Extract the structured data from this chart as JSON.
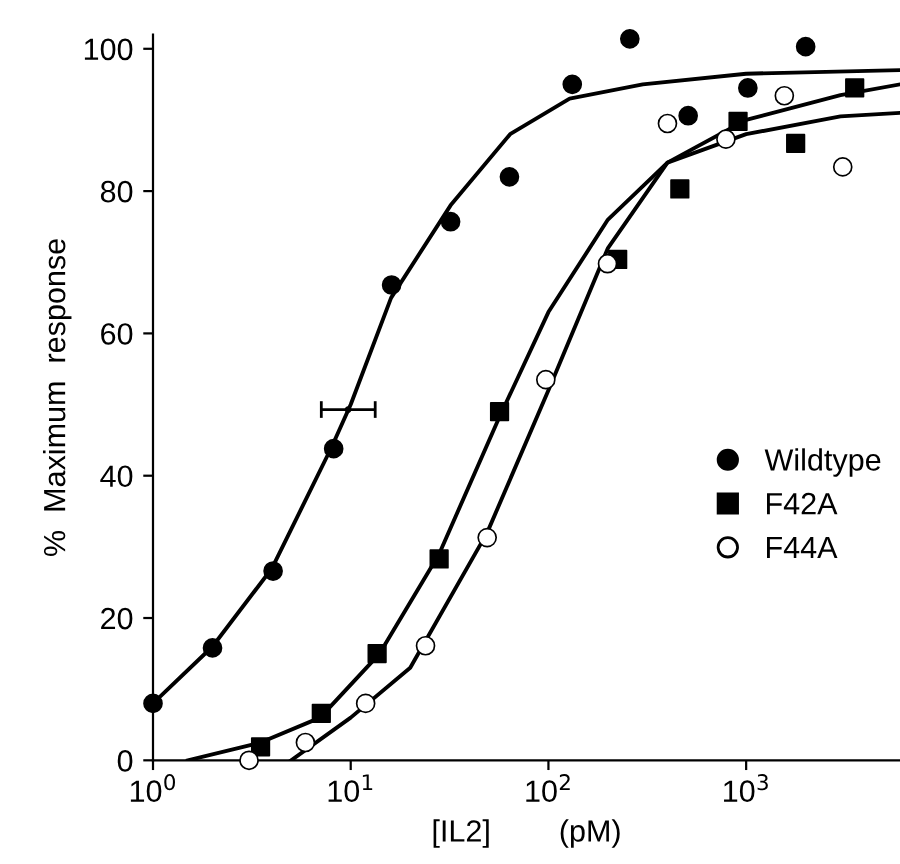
{
  "chart_data": {
    "type": "scatter",
    "xlabel": "[IL2]        (pM)",
    "ylabel": "%  Maximum  response",
    "log": "x",
    "xlim": [
      1,
      6000
    ],
    "xticks": [
      {
        "value": 1,
        "label": "10$^{0}$"
      },
      {
        "value": 10,
        "label": "10$^{1}$"
      },
      {
        "value": 100,
        "label": "10$^{2}$"
      },
      {
        "value": 1000,
        "label": "10$^{3}$"
      }
    ],
    "ylim": [
      0,
      102
    ],
    "yticks": [
      0,
      20,
      40,
      60,
      80,
      100
    ],
    "grid": false,
    "legend": "right",
    "series": [
      {
        "name": "Wildtype",
        "marker": "circle",
        "color": "#000000",
        "x": [
          1,
          2.0,
          4.05,
          8.2,
          16.1,
          32,
          63.5,
          132,
          258,
          509,
          1020,
          2000
        ],
        "values": [
          8,
          15.8,
          26.6,
          43.8,
          66.8,
          75.7,
          82,
          95,
          101.4,
          90.6,
          94.5,
          100.3
        ]
      },
      {
        "name": "F42A",
        "marker": "square",
        "color": "#000000",
        "x": [
          3.5,
          7.1,
          13.6,
          28,
          56.6,
          224,
          462,
          910,
          1780,
          3540
        ],
        "values": [
          1.9,
          6.6,
          15,
          28.3,
          49,
          70.4,
          80.3,
          89.8,
          86.7,
          94.5
        ]
      },
      {
        "name": "F44A",
        "marker": "circle",
        "color": "#ffffff",
        "x": [
          3.06,
          5.9,
          11.9,
          23.9,
          49,
          97,
          199,
          400,
          790,
          1560,
          3080
        ],
        "values": [
          0,
          2.5,
          8,
          16.1,
          31.3,
          53.5,
          69.8,
          89.5,
          87.3,
          93.4,
          83.4
        ]
      },
      {
        "marker": "circle",
        "color": "#000000",
        "x": [
          9.7
        ],
        "values": [
          49.3
        ],
        "xerrors": [
          [
            7.1,
            13.3
          ]
        ]
      },
      {
        "type": "line",
        "color": "#000000",
        "x": [
          1,
          2,
          4,
          8,
          10,
          16,
          32,
          64,
          128,
          300,
          1000,
          6000
        ],
        "values": [
          8,
          16,
          27,
          44,
          50,
          65,
          78,
          88,
          93,
          95,
          96.5,
          97
        ]
      },
      {
        "type": "line",
        "color": "#000000",
        "x": [
          1.5,
          3.5,
          7,
          14,
          28,
          56,
          100,
          200,
          400,
          1000,
          3000,
          6000
        ],
        "values": [
          0,
          2.5,
          6,
          15,
          29,
          48,
          63,
          76,
          84,
          88,
          90.5,
          91
        ]
      },
      {
        "type": "line",
        "color": "#000000",
        "x": [
          5,
          10,
          20,
          49,
          100,
          200,
          400,
          1000,
          3000,
          6000
        ],
        "values": [
          0,
          6,
          13,
          32,
          52,
          72,
          84,
          90,
          93.5,
          95
        ]
      }
    ]
  }
}
